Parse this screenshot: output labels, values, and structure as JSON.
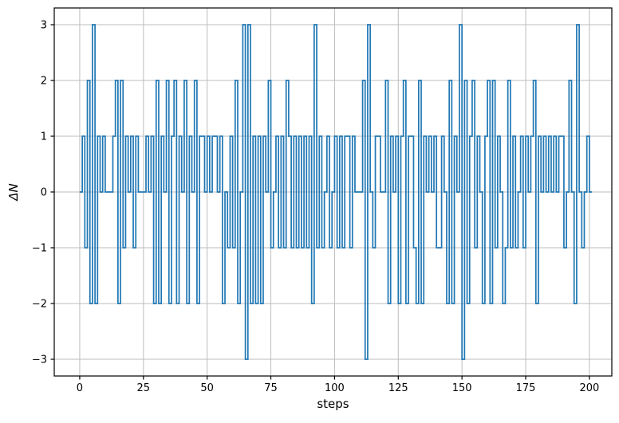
{
  "figure": {
    "background": "#ffffff"
  },
  "chart_data": {
    "type": "line",
    "drawstyle": "steps",
    "title": "",
    "xlabel": "steps",
    "ylabel": "ΔN",
    "x_start": 0,
    "values": [
      0,
      1,
      -1,
      2,
      -2,
      3,
      -2,
      1,
      0,
      1,
      0,
      0,
      0,
      1,
      2,
      -2,
      2,
      -1,
      1,
      0,
      1,
      -1,
      1,
      0,
      0,
      0,
      1,
      0,
      1,
      -2,
      2,
      -2,
      1,
      0,
      2,
      -2,
      1,
      2,
      -2,
      1,
      0,
      2,
      -2,
      1,
      0,
      2,
      -2,
      1,
      1,
      0,
      1,
      0,
      1,
      1,
      0,
      1,
      -2,
      0,
      -1,
      1,
      -1,
      2,
      -2,
      0,
      3,
      -3,
      3,
      -2,
      1,
      -2,
      1,
      -2,
      1,
      0,
      2,
      -1,
      0,
      1,
      -1,
      1,
      -1,
      2,
      1,
      -1,
      1,
      -1,
      1,
      -1,
      1,
      -1,
      1,
      -2,
      3,
      -1,
      1,
      -1,
      0,
      1,
      -1,
      0,
      1,
      -1,
      1,
      -1,
      1,
      1,
      -1,
      1,
      0,
      0,
      0,
      2,
      -3,
      3,
      0,
      -1,
      1,
      1,
      0,
      0,
      2,
      -2,
      1,
      0,
      1,
      -2,
      1,
      2,
      -2,
      1,
      1,
      -1,
      -2,
      2,
      -2,
      1,
      0,
      1,
      0,
      1,
      -1,
      -1,
      1,
      0,
      -2,
      2,
      -2,
      1,
      0,
      3,
      -3,
      2,
      -2,
      1,
      2,
      -1,
      1,
      0,
      -2,
      1,
      2,
      -2,
      2,
      -1,
      1,
      0,
      -2,
      -1,
      2,
      -1,
      1,
      -1,
      0,
      1,
      -1,
      1,
      0,
      1,
      2,
      -2,
      1,
      0,
      1,
      0,
      1,
      0,
      1,
      0,
      1,
      1,
      -1,
      0,
      2,
      0,
      -2,
      3,
      0,
      -1,
      0,
      1,
      0
    ],
    "xticks": [
      0,
      25,
      50,
      75,
      100,
      125,
      150,
      175,
      200
    ],
    "yticks": [
      -3,
      -2,
      -1,
      0,
      1,
      2,
      3
    ],
    "xlim": [
      -10,
      208.8
    ],
    "ylim": [
      -3.3,
      3.3
    ],
    "grid": true,
    "legend_position": "none",
    "line_color": "#1f77b4",
    "grid_color": "#bdbdbd",
    "spine_color": "#000000",
    "tick_color": "#000000"
  }
}
